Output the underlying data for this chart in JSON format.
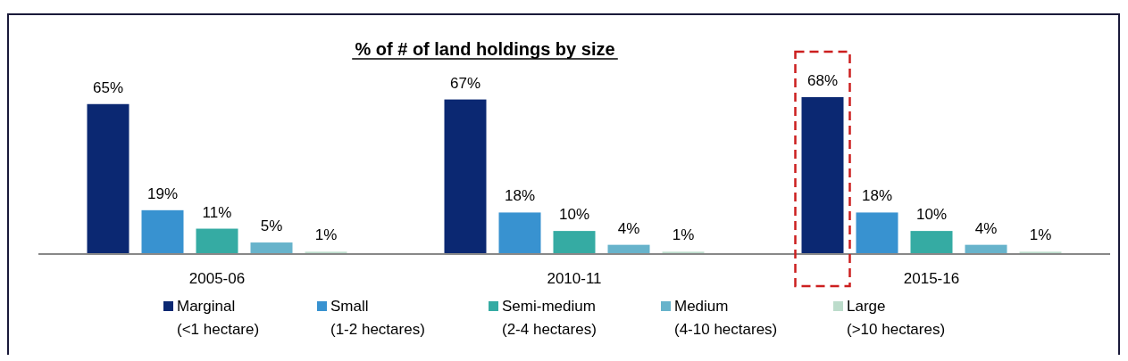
{
  "chart_data": {
    "type": "bar",
    "title": "% of # of land holdings by size",
    "categories": [
      "2005-06",
      "2010-11",
      "2015-16"
    ],
    "series": [
      {
        "name": "Marginal\n(<1 hectare)",
        "color": "#0b2872",
        "values": [
          65,
          67,
          68
        ],
        "value_labels": [
          "65%",
          "67%",
          "68%"
        ]
      },
      {
        "name": "Small\n(1-2 hectares)",
        "color": "#3892d0",
        "values": [
          19,
          18,
          18
        ],
        "value_labels": [
          "19%",
          "18%",
          "18%"
        ]
      },
      {
        "name": "Semi-medium\n(2-4 hectares)",
        "color": "#35aba3",
        "values": [
          11,
          10,
          10
        ],
        "value_labels": [
          "11%",
          "10%",
          "10%"
        ]
      },
      {
        "name": "Medium\n(4-10 hectares)",
        "color": "#67b3cb",
        "values": [
          5,
          4,
          4
        ],
        "value_labels": [
          "5%",
          "4%",
          "4%"
        ]
      },
      {
        "name": "Large\n(>10 hectares)",
        "color": "#bcdccb",
        "values": [
          1,
          1,
          1
        ],
        "value_labels": [
          "1%",
          "1%",
          "1%"
        ]
      }
    ],
    "tick_labels": "x",
    "legend": "bottom"
  }
}
